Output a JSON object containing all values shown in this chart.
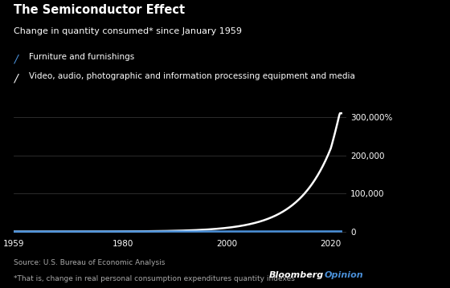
{
  "title": "The Semiconductor Effect",
  "subtitle": "Change in quantity consumed* since January 1959",
  "legend": [
    {
      "label": "Furniture and furnishings",
      "color": "#4a90d9",
      "lw": 1.8
    },
    {
      "label": "Video, audio, photographic and information processing equipment and media",
      "color": "#ffffff",
      "lw": 1.8
    }
  ],
  "source": "Source: U.S. Bureau of Economic Analysis",
  "footnote": "*That is, change in real personal consumption expenditures quantity indexes",
  "bloomberg_label_1": "Bloomberg",
  "bloomberg_label_2": "Opinion",
  "bloomberg_color_1": "#ffffff",
  "bloomberg_color_2": "#4a90d9",
  "background_color": "#000000",
  "text_color": "#ffffff",
  "dim_color": "#aaaaaa",
  "grid_color": "#333333",
  "year_start": 1959,
  "year_end": 2023,
  "ylim": [
    -12000,
    320000
  ],
  "yticks": [
    0,
    100000,
    200000,
    300000
  ],
  "ytick_labels": [
    "0",
    "100,000",
    "200,000",
    "300,000%"
  ],
  "xticks": [
    1959,
    1980,
    2000,
    2020
  ]
}
